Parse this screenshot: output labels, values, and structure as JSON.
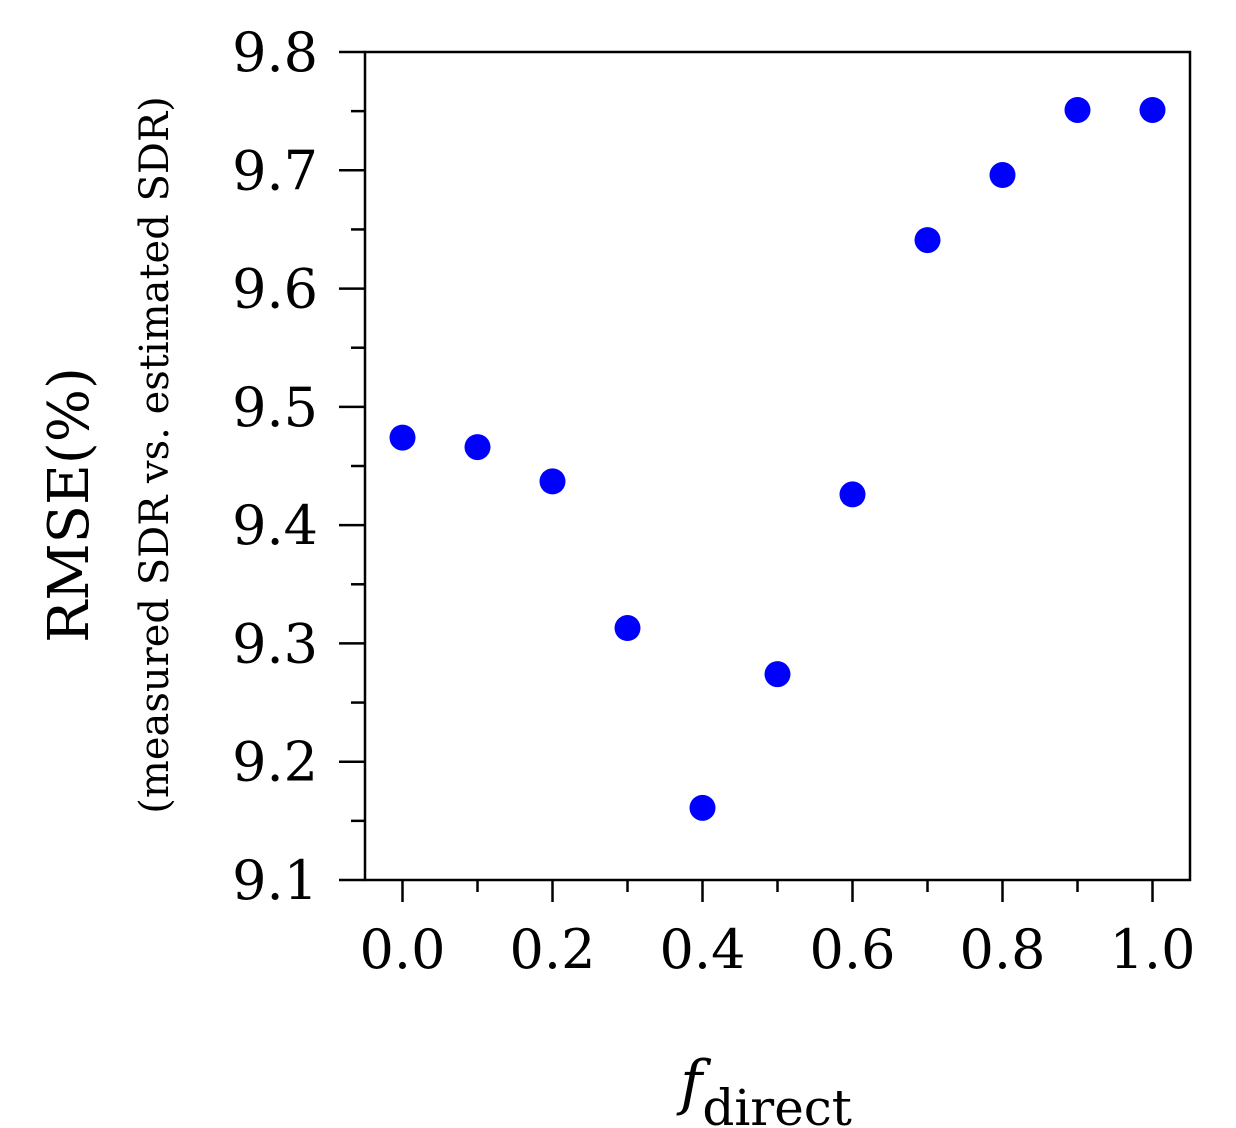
{
  "chart_data": {
    "type": "scatter",
    "x": [
      0.0,
      0.1,
      0.2,
      0.3,
      0.4,
      0.5,
      0.6,
      0.7,
      0.8,
      0.9,
      1.0
    ],
    "y": [
      9.474,
      9.466,
      9.437,
      9.313,
      9.161,
      9.274,
      9.426,
      9.641,
      9.696,
      9.751,
      9.751
    ],
    "xlabel": {
      "main": "f",
      "subscript": "direct"
    },
    "ylabel": {
      "line1": "RMSE(%)",
      "line2": "(measured SDR vs. estimated SDR)"
    },
    "xlim": [
      -0.05,
      1.05
    ],
    "ylim": [
      9.1,
      9.8
    ],
    "xticks": [
      0.0,
      0.2,
      0.4,
      0.6,
      0.8,
      1.0
    ],
    "xtick_labels": [
      "0.0",
      "0.2",
      "0.4",
      "0.6",
      "0.8",
      "1.0"
    ],
    "yticks": [
      9.1,
      9.2,
      9.3,
      9.4,
      9.5,
      9.6,
      9.7,
      9.8
    ],
    "ytick_labels": [
      "9.1",
      "9.2",
      "9.3",
      "9.4",
      "9.5",
      "9.6",
      "9.7",
      "9.8"
    ],
    "grid": false,
    "marker_color": "#0000ff"
  }
}
